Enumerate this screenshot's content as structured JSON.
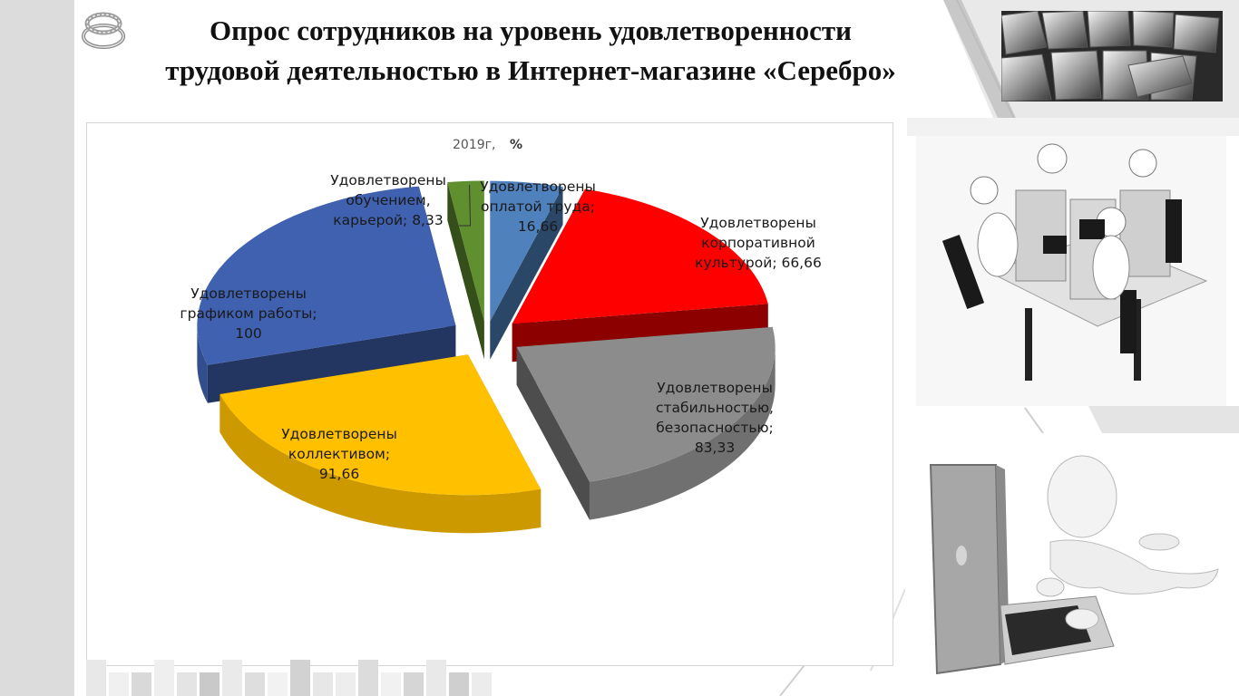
{
  "slide": {
    "title_line1": "Опрос сотрудников на уровень удовлетворенности",
    "title_line2": "трудовой деятельностью в Интернет-магазине «Серебро»"
  },
  "icons": {
    "logo": "silver-ring-icon",
    "photo_top": "silver-bars-photo",
    "photo_middle": "call-center-office-photo",
    "photo_bottom": "figure-with-laptop-photo"
  },
  "chart_data": {
    "type": "pie",
    "style": "3d-exploded",
    "title_year": "2019г,",
    "title_unit": "%",
    "slices": [
      {
        "label_lines": [
          "Удовлетворены",
          "оплатой труда;",
          "16,66"
        ],
        "value": 16.66,
        "color": "#4f81bd"
      },
      {
        "label_lines": [
          "Удовлетворены",
          "корпоративной",
          "культурой; 66,66"
        ],
        "value": 66.66,
        "color": "#ff0000"
      },
      {
        "label_lines": [
          "Удовлетворены",
          "стабильностью,",
          "безопасностью;",
          "83,33"
        ],
        "value": 83.33,
        "color": "#8c8c8c"
      },
      {
        "label_lines": [
          "Удовлетворены",
          "коллективом;",
          "91,66"
        ],
        "value": 91.66,
        "color": "#ffc000"
      },
      {
        "label_lines": [
          "Удовлетворены",
          "графиком работы;",
          "100"
        ],
        "value": 100,
        "color": "#3f61b0"
      },
      {
        "label_lines": [
          "Удовлетворены",
          "обучением,",
          "карьерой; 8,33"
        ],
        "value": 8.33,
        "color": "#5f8f2f"
      }
    ]
  }
}
